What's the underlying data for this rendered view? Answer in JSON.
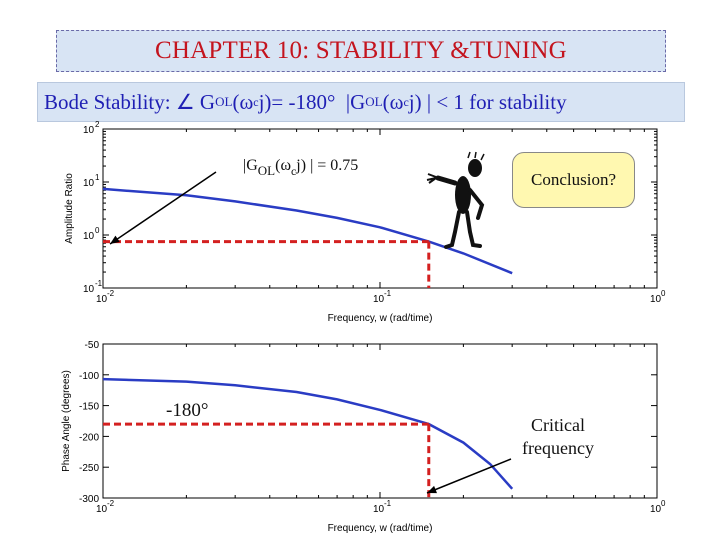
{
  "header": {
    "title": "CHAPTER 10: STABILITY &TUNING",
    "subtitle_prefix": "Bode Stability:",
    "angle_symbol": "∠",
    "g": "G",
    "ol": "OL",
    "paren_open": "(",
    "omega": "ω",
    "c": "c",
    "j_close": "j)",
    "eq_phase": " = -180",
    "degree": "°",
    "abs_open": "|G",
    "abs_close": "j) | < 1 for stability"
  },
  "annotations": {
    "ratio_prefix": "|G",
    "ratio_sub": "OL",
    "ratio_mid": "(ω",
    "ratio_sub2": "c",
    "ratio_suffix": "j) | = 0.75",
    "conclusion": "Conclusion?",
    "phase_callout": "-180°",
    "critical_line1": "Critical",
    "critical_line2": "frequency"
  },
  "chart_data": [
    {
      "type": "line",
      "scale": "log-log",
      "ylabel": "Amplitude Ratio",
      "xlabel": "Frequency, w (rad/time)",
      "xlim": [
        0.01,
        1
      ],
      "ylim": [
        0.1,
        100
      ],
      "x_ticks": [
        "10",
        "10",
        "10"
      ],
      "x_tick_exp": [
        "-2",
        "-1",
        "0"
      ],
      "y_ticks": [
        "10",
        "10",
        "10",
        "10"
      ],
      "y_tick_exp": [
        "-1",
        "0",
        "1",
        "2"
      ],
      "series": [
        {
          "x": [
            0.01,
            0.02,
            0.03,
            0.05,
            0.07,
            0.1,
            0.15,
            0.2,
            0.3
          ],
          "y": [
            7.4,
            5.6,
            4.3,
            2.9,
            2.1,
            1.4,
            0.75,
            0.45,
            0.19
          ]
        }
      ],
      "markers": {
        "x": 0.15,
        "y": 0.75
      }
    },
    {
      "type": "line",
      "scale": "semilog-x",
      "ylabel": "Phase Angle (degrees)",
      "xlabel": "Frequency, w (rad/time)",
      "xlim": [
        0.01,
        1
      ],
      "ylim": [
        -300,
        -50
      ],
      "x_ticks": [
        "10",
        "10",
        "10"
      ],
      "x_tick_exp": [
        "-2",
        "-1",
        "0"
      ],
      "y_ticks": [
        "-50",
        "-100",
        "-150",
        "-200",
        "-250",
        "-300"
      ],
      "series": [
        {
          "x": [
            0.01,
            0.02,
            0.03,
            0.05,
            0.07,
            0.1,
            0.15,
            0.2,
            0.25,
            0.3
          ],
          "y": [
            -107,
            -111,
            -117,
            -128,
            -140,
            -157,
            -180,
            -210,
            -245,
            -285
          ]
        }
      ],
      "markers": {
        "x": 0.15,
        "y": -180
      }
    }
  ],
  "colors": {
    "curve": "#2a3cc4",
    "marker": "#d42020",
    "title": "#c4141e",
    "subtitle": "#1f1fb4",
    "banner": "#d8e4f4",
    "speech": "#fff8b0"
  },
  "icons": {
    "figure": "pointing-stick-figure-icon"
  }
}
